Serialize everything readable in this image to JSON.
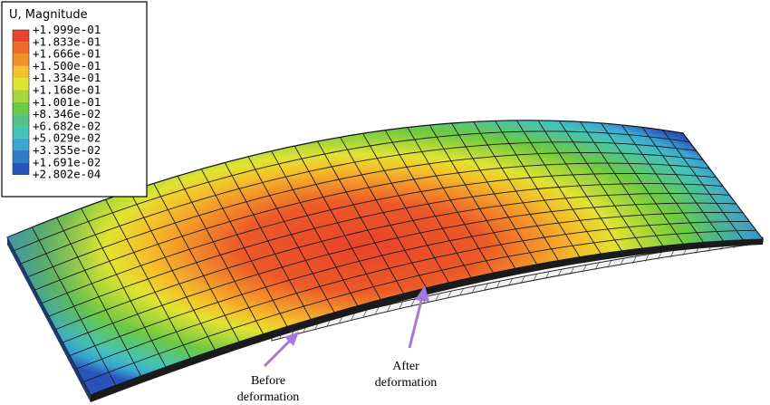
{
  "legend": {
    "title": "U, Magnitude",
    "values": [
      "+1.999e-01",
      "+1.833e-01",
      "+1.666e-01",
      "+1.500e-01",
      "+1.334e-01",
      "+1.168e-01",
      "+1.001e-01",
      "+8.346e-02",
      "+6.682e-02",
      "+5.029e-02",
      "+3.355e-02",
      "+1.691e-02",
      "+2.802e-04"
    ],
    "colors": [
      "#e8432b",
      "#ef6a28",
      "#f2912a",
      "#f4c22a",
      "#e1e332",
      "#a6d63a",
      "#6cc943",
      "#54c486",
      "#46c2b9",
      "#3aa6d2",
      "#2f7cc8",
      "#2a52bb"
    ]
  },
  "annotations": {
    "before": [
      "Before",
      "deformation"
    ],
    "after": [
      "After",
      "deformation"
    ],
    "arrow_color": "#a678d8"
  }
}
